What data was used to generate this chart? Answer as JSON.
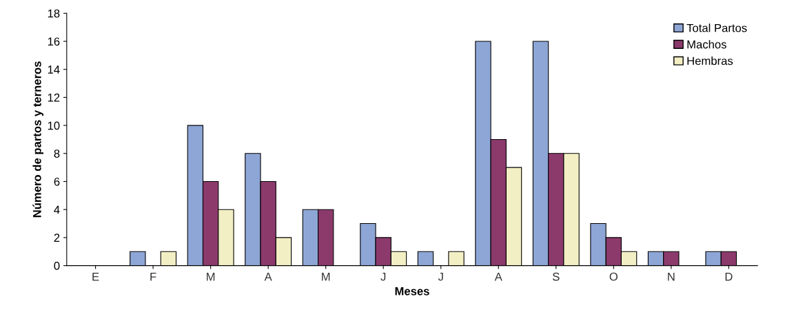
{
  "chart_data": {
    "type": "bar",
    "xlabel": "Meses",
    "ylabel": "Número de partos y terneros",
    "categories": [
      "E",
      "F",
      "M",
      "A",
      "M",
      "J",
      "J",
      "A",
      "S",
      "O",
      "N",
      "D"
    ],
    "series": [
      {
        "name": "Total Partos",
        "color": "#8ea6d6",
        "values": [
          0,
          1,
          10,
          8,
          4,
          3,
          1,
          16,
          16,
          3,
          1,
          1
        ]
      },
      {
        "name": "Machos",
        "color": "#8c3a6c",
        "values": [
          0,
          0,
          6,
          6,
          4,
          2,
          0,
          9,
          8,
          2,
          1,
          1
        ]
      },
      {
        "name": "Hembras",
        "color": "#f3efc4",
        "values": [
          0,
          1,
          4,
          2,
          0,
          1,
          1,
          7,
          8,
          1,
          0,
          0
        ]
      }
    ],
    "ylim": [
      0,
      18
    ],
    "yticks": [
      0,
      2,
      4,
      6,
      8,
      10,
      12,
      14,
      16,
      18
    ],
    "grid": false,
    "legend": "top right"
  }
}
